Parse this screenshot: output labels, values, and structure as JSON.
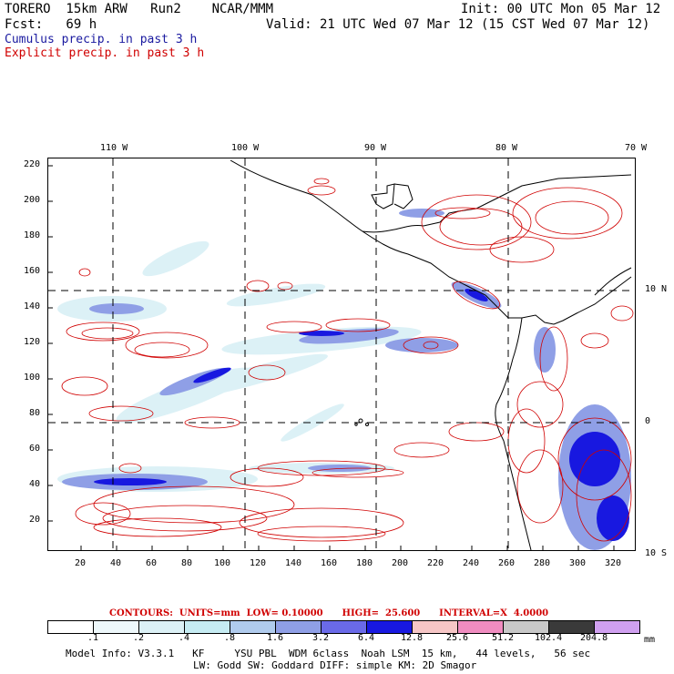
{
  "header": {
    "line1_left": "TORERO  15km ARW   Run2    NCAR/MMM",
    "line1_right": "Init: 00 UTC Mon 05 Mar 12",
    "line2_left": "Fcst:   69 h",
    "line2_right": "Valid: 21 UTC Wed 07 Mar 12 (15 CST Wed 07 Mar 12)",
    "legend_blue": "Cumulus precip. in past 3 h",
    "legend_red": "Explicit precip. in past 3 h"
  },
  "axes": {
    "top_lon": [
      "110 W",
      "100 W",
      "90 W",
      "80 W",
      "70 W"
    ],
    "left_y": [
      "220",
      "200",
      "180",
      "160",
      "140",
      "120",
      "100",
      "80",
      "60",
      "40",
      "20"
    ],
    "bottom_x": [
      "20",
      "40",
      "60",
      "80",
      "100",
      "120",
      "140",
      "160",
      "180",
      "200",
      "220",
      "240",
      "260",
      "280",
      "300",
      "320"
    ],
    "right_lat": [
      "10 N",
      "0",
      "10 S"
    ]
  },
  "colorbar": {
    "info": "CONTOURS:  UNITS=mm  LOW= 0.10000      HIGH=  25.600      INTERVAL=X  4.0000",
    "colors": [
      "#ffffff",
      "#eef8fb",
      "#dcf1f6",
      "#c6ecf3",
      "#b0cbed",
      "#8f9fe6",
      "#6a6ae8",
      "#1818e0",
      "#f6c6c6",
      "#f08cc0",
      "#c8c8c8",
      "#3a3a3a",
      "#d0a0f0"
    ],
    "labels": [
      ".1",
      ".2",
      ".4",
      ".8",
      "1.6",
      "3.2",
      "6.4",
      "12.8",
      "25.6",
      "51.2",
      "102.4",
      "204.8"
    ],
    "unit": "mm"
  },
  "footer": {
    "line1": "Model Info: V3.3.1   KF     YSU PBL  WDM 6class  Noah LSM  15 km,   44 levels,   56 sec",
    "line2": "LW: Godd SW: Goddard DIFF: simple KM: 2D Smagor"
  }
}
